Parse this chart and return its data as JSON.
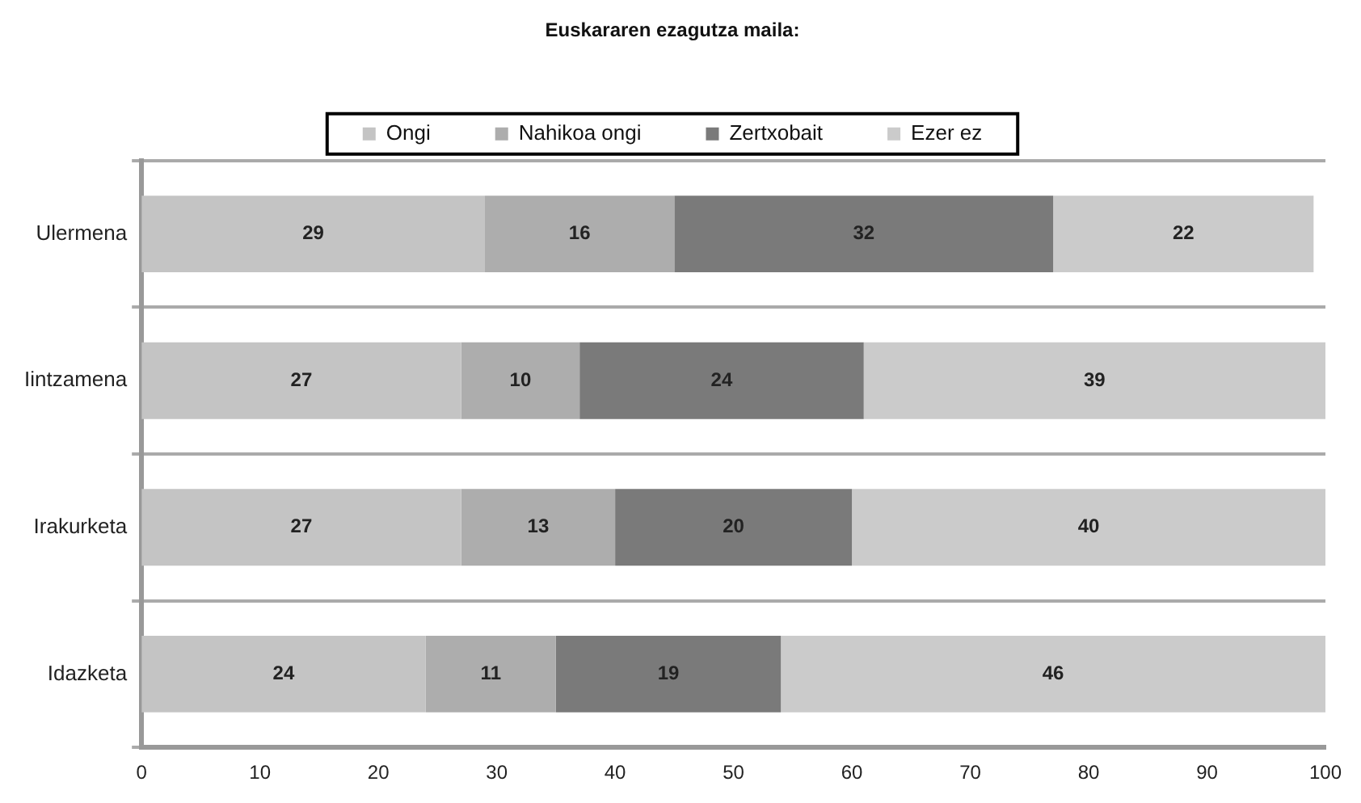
{
  "chart_data": {
    "type": "bar",
    "orientation": "horizontal",
    "stacked": true,
    "title": "Euskararen ezagutza maila:",
    "categories": [
      "Ulermena",
      "Iintzamena",
      "Irakurketa",
      "Idazketa"
    ],
    "series": [
      {
        "name": "Ongi",
        "color": "#c4c4c4",
        "values": [
          29,
          27,
          27,
          24
        ]
      },
      {
        "name": "Nahikoa ongi",
        "color": "#adadad",
        "values": [
          16,
          10,
          13,
          11
        ]
      },
      {
        "name": "Zertxobait",
        "color": "#7a7a7a",
        "values": [
          32,
          24,
          20,
          19
        ]
      },
      {
        "name": "Ezer ez",
        "color": "#cbcbcb",
        "values": [
          22,
          39,
          40,
          46
        ]
      }
    ],
    "xlim": [
      0,
      100
    ],
    "xticks": [
      0,
      10,
      20,
      30,
      40,
      50,
      60,
      70,
      80,
      90,
      100
    ],
    "grid": "y",
    "legend": "top",
    "data_labels": true
  }
}
